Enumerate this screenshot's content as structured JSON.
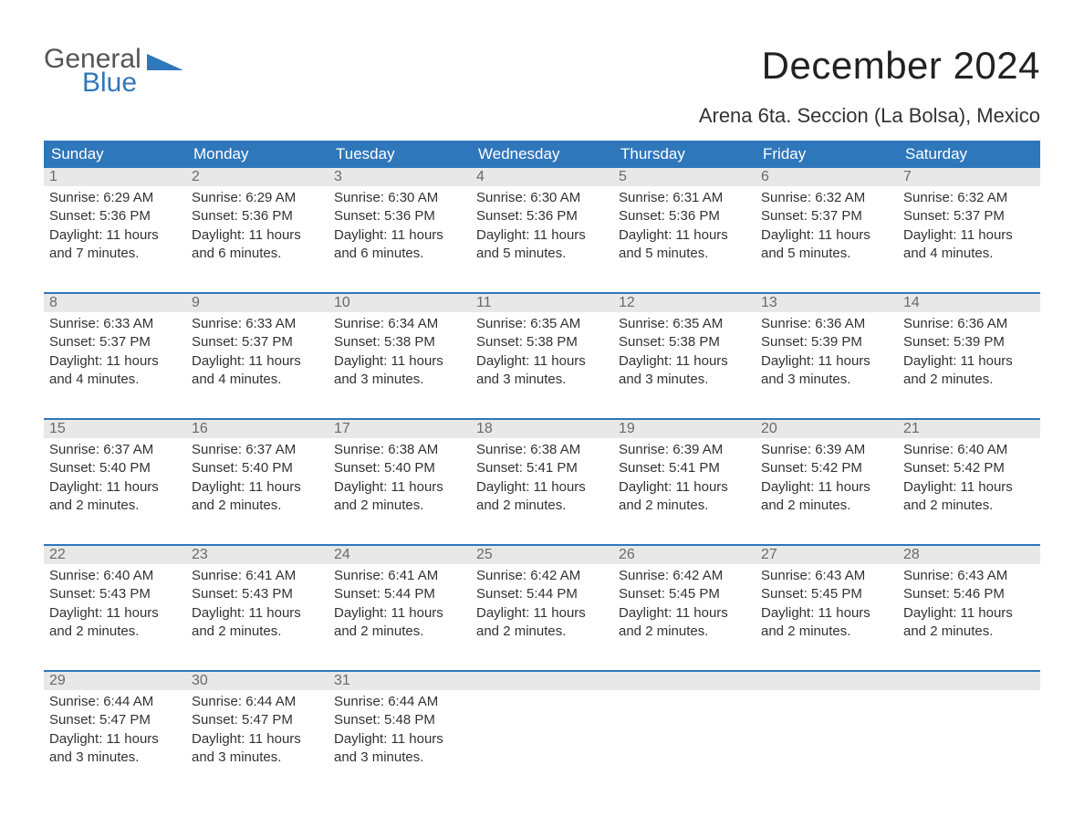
{
  "brand": {
    "part1": "General",
    "part2": "Blue"
  },
  "title": "December 2024",
  "location": "Arena 6ta. Seccion (La Bolsa), Mexico",
  "colors": {
    "header_bg": "#2f77bb",
    "header_text": "#ffffff",
    "daynum_bg": "#e8e8e8",
    "daynum_text": "#6a6a6a",
    "body_text": "#333333",
    "page_bg": "#ffffff",
    "week_divider": "#2f77bb"
  },
  "typography": {
    "title_fontsize": 42,
    "location_fontsize": 22,
    "header_fontsize": 17,
    "daynum_fontsize": 16,
    "body_fontsize": 15
  },
  "day_names": [
    "Sunday",
    "Monday",
    "Tuesday",
    "Wednesday",
    "Thursday",
    "Friday",
    "Saturday"
  ],
  "weeks": [
    [
      {
        "day": "1",
        "sunrise": "Sunrise: 6:29 AM",
        "sunset": "Sunset: 5:36 PM",
        "daylight1": "Daylight: 11 hours",
        "daylight2": "and 7 minutes."
      },
      {
        "day": "2",
        "sunrise": "Sunrise: 6:29 AM",
        "sunset": "Sunset: 5:36 PM",
        "daylight1": "Daylight: 11 hours",
        "daylight2": "and 6 minutes."
      },
      {
        "day": "3",
        "sunrise": "Sunrise: 6:30 AM",
        "sunset": "Sunset: 5:36 PM",
        "daylight1": "Daylight: 11 hours",
        "daylight2": "and 6 minutes."
      },
      {
        "day": "4",
        "sunrise": "Sunrise: 6:30 AM",
        "sunset": "Sunset: 5:36 PM",
        "daylight1": "Daylight: 11 hours",
        "daylight2": "and 5 minutes."
      },
      {
        "day": "5",
        "sunrise": "Sunrise: 6:31 AM",
        "sunset": "Sunset: 5:36 PM",
        "daylight1": "Daylight: 11 hours",
        "daylight2": "and 5 minutes."
      },
      {
        "day": "6",
        "sunrise": "Sunrise: 6:32 AM",
        "sunset": "Sunset: 5:37 PM",
        "daylight1": "Daylight: 11 hours",
        "daylight2": "and 5 minutes."
      },
      {
        "day": "7",
        "sunrise": "Sunrise: 6:32 AM",
        "sunset": "Sunset: 5:37 PM",
        "daylight1": "Daylight: 11 hours",
        "daylight2": "and 4 minutes."
      }
    ],
    [
      {
        "day": "8",
        "sunrise": "Sunrise: 6:33 AM",
        "sunset": "Sunset: 5:37 PM",
        "daylight1": "Daylight: 11 hours",
        "daylight2": "and 4 minutes."
      },
      {
        "day": "9",
        "sunrise": "Sunrise: 6:33 AM",
        "sunset": "Sunset: 5:37 PM",
        "daylight1": "Daylight: 11 hours",
        "daylight2": "and 4 minutes."
      },
      {
        "day": "10",
        "sunrise": "Sunrise: 6:34 AM",
        "sunset": "Sunset: 5:38 PM",
        "daylight1": "Daylight: 11 hours",
        "daylight2": "and 3 minutes."
      },
      {
        "day": "11",
        "sunrise": "Sunrise: 6:35 AM",
        "sunset": "Sunset: 5:38 PM",
        "daylight1": "Daylight: 11 hours",
        "daylight2": "and 3 minutes."
      },
      {
        "day": "12",
        "sunrise": "Sunrise: 6:35 AM",
        "sunset": "Sunset: 5:38 PM",
        "daylight1": "Daylight: 11 hours",
        "daylight2": "and 3 minutes."
      },
      {
        "day": "13",
        "sunrise": "Sunrise: 6:36 AM",
        "sunset": "Sunset: 5:39 PM",
        "daylight1": "Daylight: 11 hours",
        "daylight2": "and 3 minutes."
      },
      {
        "day": "14",
        "sunrise": "Sunrise: 6:36 AM",
        "sunset": "Sunset: 5:39 PM",
        "daylight1": "Daylight: 11 hours",
        "daylight2": "and 2 minutes."
      }
    ],
    [
      {
        "day": "15",
        "sunrise": "Sunrise: 6:37 AM",
        "sunset": "Sunset: 5:40 PM",
        "daylight1": "Daylight: 11 hours",
        "daylight2": "and 2 minutes."
      },
      {
        "day": "16",
        "sunrise": "Sunrise: 6:37 AM",
        "sunset": "Sunset: 5:40 PM",
        "daylight1": "Daylight: 11 hours",
        "daylight2": "and 2 minutes."
      },
      {
        "day": "17",
        "sunrise": "Sunrise: 6:38 AM",
        "sunset": "Sunset: 5:40 PM",
        "daylight1": "Daylight: 11 hours",
        "daylight2": "and 2 minutes."
      },
      {
        "day": "18",
        "sunrise": "Sunrise: 6:38 AM",
        "sunset": "Sunset: 5:41 PM",
        "daylight1": "Daylight: 11 hours",
        "daylight2": "and 2 minutes."
      },
      {
        "day": "19",
        "sunrise": "Sunrise: 6:39 AM",
        "sunset": "Sunset: 5:41 PM",
        "daylight1": "Daylight: 11 hours",
        "daylight2": "and 2 minutes."
      },
      {
        "day": "20",
        "sunrise": "Sunrise: 6:39 AM",
        "sunset": "Sunset: 5:42 PM",
        "daylight1": "Daylight: 11 hours",
        "daylight2": "and 2 minutes."
      },
      {
        "day": "21",
        "sunrise": "Sunrise: 6:40 AM",
        "sunset": "Sunset: 5:42 PM",
        "daylight1": "Daylight: 11 hours",
        "daylight2": "and 2 minutes."
      }
    ],
    [
      {
        "day": "22",
        "sunrise": "Sunrise: 6:40 AM",
        "sunset": "Sunset: 5:43 PM",
        "daylight1": "Daylight: 11 hours",
        "daylight2": "and 2 minutes."
      },
      {
        "day": "23",
        "sunrise": "Sunrise: 6:41 AM",
        "sunset": "Sunset: 5:43 PM",
        "daylight1": "Daylight: 11 hours",
        "daylight2": "and 2 minutes."
      },
      {
        "day": "24",
        "sunrise": "Sunrise: 6:41 AM",
        "sunset": "Sunset: 5:44 PM",
        "daylight1": "Daylight: 11 hours",
        "daylight2": "and 2 minutes."
      },
      {
        "day": "25",
        "sunrise": "Sunrise: 6:42 AM",
        "sunset": "Sunset: 5:44 PM",
        "daylight1": "Daylight: 11 hours",
        "daylight2": "and 2 minutes."
      },
      {
        "day": "26",
        "sunrise": "Sunrise: 6:42 AM",
        "sunset": "Sunset: 5:45 PM",
        "daylight1": "Daylight: 11 hours",
        "daylight2": "and 2 minutes."
      },
      {
        "day": "27",
        "sunrise": "Sunrise: 6:43 AM",
        "sunset": "Sunset: 5:45 PM",
        "daylight1": "Daylight: 11 hours",
        "daylight2": "and 2 minutes."
      },
      {
        "day": "28",
        "sunrise": "Sunrise: 6:43 AM",
        "sunset": "Sunset: 5:46 PM",
        "daylight1": "Daylight: 11 hours",
        "daylight2": "and 2 minutes."
      }
    ],
    [
      {
        "day": "29",
        "sunrise": "Sunrise: 6:44 AM",
        "sunset": "Sunset: 5:47 PM",
        "daylight1": "Daylight: 11 hours",
        "daylight2": "and 3 minutes."
      },
      {
        "day": "30",
        "sunrise": "Sunrise: 6:44 AM",
        "sunset": "Sunset: 5:47 PM",
        "daylight1": "Daylight: 11 hours",
        "daylight2": "and 3 minutes."
      },
      {
        "day": "31",
        "sunrise": "Sunrise: 6:44 AM",
        "sunset": "Sunset: 5:48 PM",
        "daylight1": "Daylight: 11 hours",
        "daylight2": "and 3 minutes."
      },
      {
        "empty": true
      },
      {
        "empty": true
      },
      {
        "empty": true
      },
      {
        "empty": true
      }
    ]
  ]
}
